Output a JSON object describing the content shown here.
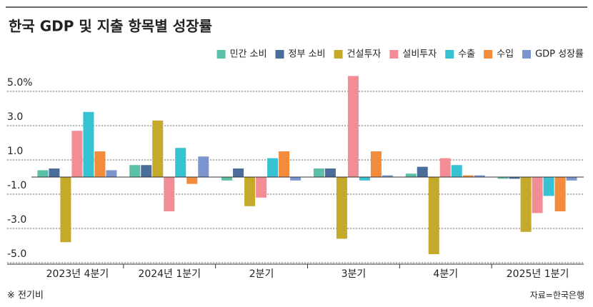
{
  "chart_data": {
    "type": "bar",
    "title": "한국 GDP 및 지출 항목별 성장률",
    "categories": [
      "2023년 4분기",
      "2024년 1분기",
      "2분기",
      "3분기",
      "4분기",
      "2025년 1분기"
    ],
    "series": [
      {
        "name": "민간 소비",
        "color": "#5cbfa8",
        "values": [
          0.4,
          0.7,
          -0.2,
          0.5,
          0.2,
          -0.1
        ]
      },
      {
        "name": "정부 소비",
        "color": "#4a6d9c",
        "values": [
          0.5,
          0.7,
          0.5,
          0.5,
          0.6,
          -0.1
        ]
      },
      {
        "name": "건설투자",
        "color": "#c4a92a",
        "values": [
          -3.8,
          3.3,
          -1.7,
          -3.6,
          -4.5,
          -3.2
        ]
      },
      {
        "name": "설비투자",
        "color": "#f28d96",
        "values": [
          2.7,
          -2.0,
          -1.2,
          5.9,
          1.1,
          -2.1
        ]
      },
      {
        "name": "수출",
        "color": "#36c2d0",
        "values": [
          3.8,
          1.7,
          1.1,
          -0.2,
          0.7,
          -1.1
        ]
      },
      {
        "name": "수입",
        "color": "#f28c3c",
        "values": [
          1.5,
          -0.4,
          1.5,
          1.5,
          0.1,
          -2.0
        ]
      },
      {
        "name": "GDP 성장률",
        "color": "#7b96cf",
        "values": [
          0.4,
          1.2,
          -0.2,
          0.1,
          0.1,
          -0.2
        ]
      }
    ],
    "ylim": [
      -5,
      6
    ],
    "yticks": [
      {
        "value": 5,
        "label": "5.0%"
      },
      {
        "value": 3,
        "label": "3.0"
      },
      {
        "value": 1,
        "label": "1.0"
      },
      {
        "value": -1,
        "label": "-1.0"
      },
      {
        "value": -3,
        "label": "-3.0"
      },
      {
        "value": -5,
        "label": "-5.0"
      }
    ],
    "grid": true,
    "legend": "top-right",
    "note": "※ 전기비",
    "source": "자료=한국은행"
  }
}
